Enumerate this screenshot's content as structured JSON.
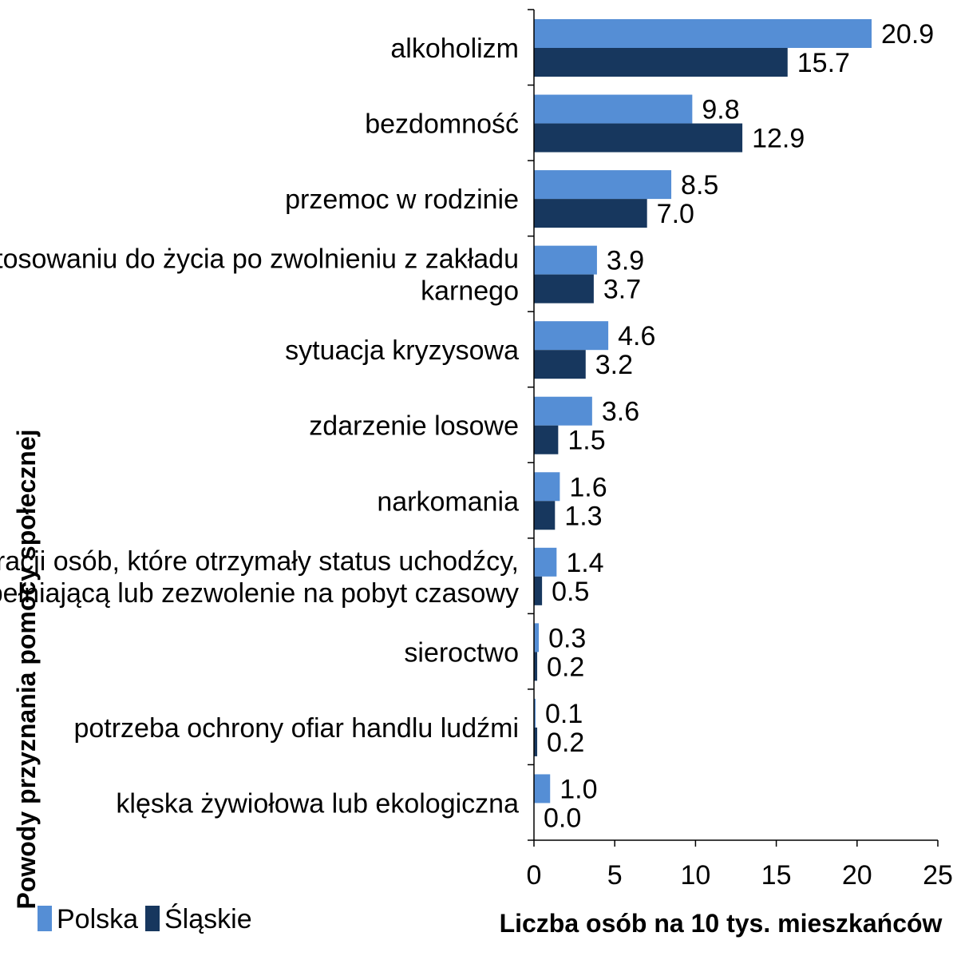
{
  "chart_data": {
    "type": "bar",
    "orientation": "horizontal",
    "categories": [
      "alkoholizm",
      "bezdomność",
      "przemoc w rodzinie",
      "trudności w przystosowaniu do życia po zwolnieniu z zakładu karnego",
      "sytuacja kryzysowa",
      "zdarzenie losowe",
      "narkomania",
      "trudności w integracji osób, które otrzymały status uchodźcy, ochronę uzupełniającą lub zezwolenie na pobyt czasowy",
      "sieroctwo",
      "potrzeba ochrony ofiar handlu ludźmi",
      "klęska żywiołowa lub ekologiczna"
    ],
    "category_lines": [
      [
        "alkoholizm"
      ],
      [
        "bezdomność"
      ],
      [
        "przemoc w rodzinie"
      ],
      [
        "trudności w przystosowaniu do życia po zwolnieniu z zakładu",
        "karnego"
      ],
      [
        "sytuacja kryzysowa"
      ],
      [
        "zdarzenie losowe"
      ],
      [
        "narkomania"
      ],
      [
        "trudności w integracji osób, które otrzymały status uchodźcy,",
        "ochronę uzupełniającą lub zezwolenie na pobyt czasowy"
      ],
      [
        "sieroctwo"
      ],
      [
        "potrzeba ochrony ofiar handlu ludźmi"
      ],
      [
        "klęska żywiołowa lub ekologiczna"
      ]
    ],
    "series": [
      {
        "name": "Polska",
        "color": "#558ED5",
        "values": [
          20.9,
          9.8,
          8.5,
          3.9,
          4.6,
          3.6,
          1.6,
          1.4,
          0.3,
          0.1,
          1.0
        ],
        "labels": [
          "20.9",
          "9.8",
          "8.5",
          "3.9",
          "4.6",
          "3.6",
          "1.6",
          "1.4",
          "0.3",
          "0.1",
          "1.0"
        ]
      },
      {
        "name": "Śląskie",
        "color": "#17375E",
        "values": [
          15.7,
          12.9,
          7.0,
          3.7,
          3.2,
          1.5,
          1.3,
          0.5,
          0.2,
          0.2,
          0.0
        ],
        "labels": [
          "15.7",
          "12.9",
          "7.0",
          "3.7",
          "3.2",
          "1.5",
          "1.3",
          "0.5",
          "0.2",
          "0.2",
          "0.0"
        ]
      }
    ],
    "xlabel": "Liczba osób na 10 tys. mieszkańców",
    "ylabel": "Powody przyznania pomocy społecznej",
    "xlim": [
      0,
      25
    ],
    "xticks": [
      "0",
      "5",
      "10",
      "15",
      "20",
      "25"
    ],
    "grid": false,
    "legend_position": "bottom-left"
  }
}
